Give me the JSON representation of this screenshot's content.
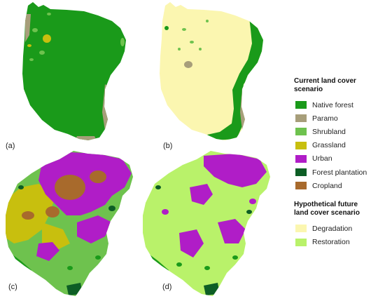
{
  "panels": [
    {
      "id": "a",
      "label": "(a)"
    },
    {
      "id": "b",
      "label": "(b)"
    },
    {
      "id": "c",
      "label": "(c)"
    },
    {
      "id": "d",
      "label": "(d)"
    }
  ],
  "legend": {
    "current_title": "Current land cover scenario",
    "current_items": [
      {
        "label": "Native forest",
        "color": "#1a9a1a"
      },
      {
        "label": "Paramo",
        "color": "#a79e7a"
      },
      {
        "label": "Shrubland",
        "color": "#6ec24e"
      },
      {
        "label": "Grassland",
        "color": "#c8bf0e"
      },
      {
        "label": "Urban",
        "color": "#b01dc7"
      },
      {
        "label": "Forest plantation",
        "color": "#0d5e25"
      },
      {
        "label": "Cropland",
        "color": "#a86a2c"
      }
    ],
    "future_title": "Hypothetical future land cover scenario",
    "future_title_line1": "Hypothetical future",
    "future_title_line2": "land cover scenario",
    "future_items": [
      {
        "label": "Degradation",
        "color": "#fbf6b0"
      },
      {
        "label": "Restoration",
        "color": "#b9f26a"
      }
    ]
  }
}
